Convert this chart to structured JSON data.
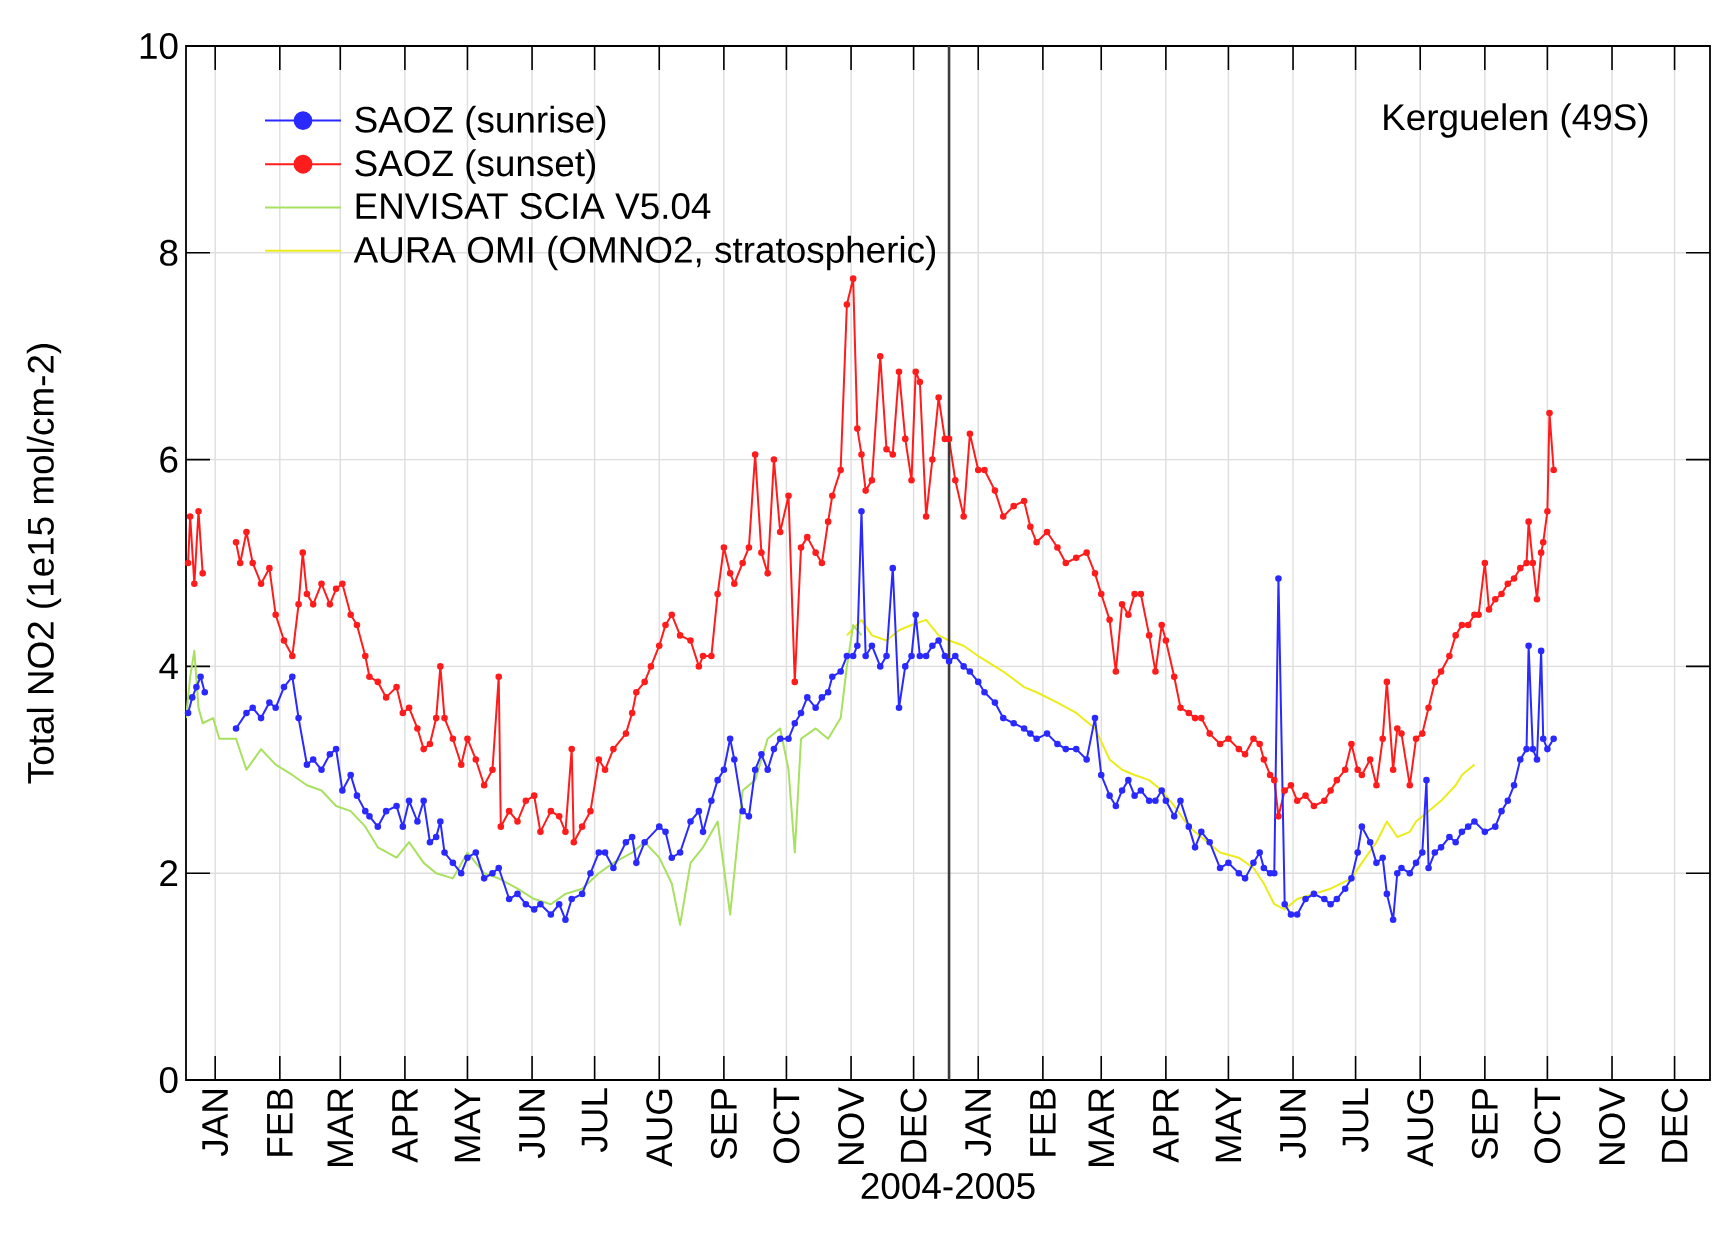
{
  "chart_data": {
    "type": "line",
    "xlabel": "2004-2005",
    "ylabel": "Total NO2 (1e15 mol/cm-2)",
    "annotations": [
      "Kerguelen (49S)"
    ],
    "xlim": [
      "2004-01-01",
      "2006-01-01"
    ],
    "ylim": [
      0,
      10
    ],
    "xticks": [
      {
        "value": "2004-01-15",
        "label": "JAN"
      },
      {
        "value": "2004-02-15",
        "label": "FEB"
      },
      {
        "value": "2004-03-15",
        "label": "MAR"
      },
      {
        "value": "2004-04-15",
        "label": "APR"
      },
      {
        "value": "2004-05-15",
        "label": "MAY"
      },
      {
        "value": "2004-06-15",
        "label": "JUN"
      },
      {
        "value": "2004-07-15",
        "label": "JUL"
      },
      {
        "value": "2004-08-15",
        "label": "AUG"
      },
      {
        "value": "2004-09-15",
        "label": "SEP"
      },
      {
        "value": "2004-10-15",
        "label": "OCT"
      },
      {
        "value": "2004-11-15",
        "label": "NOV"
      },
      {
        "value": "2004-12-15",
        "label": "DEC"
      },
      {
        "value": "2005-01-15",
        "label": "JAN"
      },
      {
        "value": "2005-02-15",
        "label": "FEB"
      },
      {
        "value": "2005-03-15",
        "label": "MAR"
      },
      {
        "value": "2005-04-15",
        "label": "APR"
      },
      {
        "value": "2005-05-15",
        "label": "MAY"
      },
      {
        "value": "2005-06-15",
        "label": "JUN"
      },
      {
        "value": "2005-07-15",
        "label": "JUL"
      },
      {
        "value": "2005-08-15",
        "label": "AUG"
      },
      {
        "value": "2005-09-15",
        "label": "SEP"
      },
      {
        "value": "2005-10-15",
        "label": "OCT"
      },
      {
        "value": "2005-11-15",
        "label": "NOV"
      },
      {
        "value": "2005-12-15",
        "label": "DEC"
      }
    ],
    "yticks": [
      0,
      2,
      4,
      6,
      8,
      10
    ],
    "grid": true,
    "legend": "top left",
    "ref_lines": [
      {
        "axis": "x",
        "value": "2005-01-01",
        "color": "#3c3c3c"
      }
    ],
    "series": [
      {
        "name": "SAOZ (sunrise)",
        "color": "#2a2aff",
        "marker": "circle",
        "x": [
          "2004-01-02",
          "2004-01-04",
          "2004-01-06",
          "2004-01-08",
          "2004-01-10",
          "2004-01-16",
          "2004-01-25",
          "2004-01-30",
          "2004-02-02",
          "2004-02-06",
          "2004-02-10",
          "2004-02-13",
          "2004-02-17",
          "2004-02-21",
          "2004-02-24",
          "2004-02-28",
          "2004-03-02",
          "2004-03-06",
          "2004-03-10",
          "2004-03-13",
          "2004-03-16",
          "2004-03-20",
          "2004-03-23",
          "2004-03-27",
          "2004-03-29",
          "2004-04-02",
          "2004-04-06",
          "2004-04-11",
          "2004-04-14",
          "2004-04-17",
          "2004-04-21",
          "2004-04-24",
          "2004-04-27",
          "2004-04-30",
          "2004-05-02",
          "2004-05-04",
          "2004-05-08",
          "2004-05-12",
          "2004-05-15",
          "2004-05-19",
          "2004-05-23",
          "2004-05-27",
          "2004-05-30",
          "2004-06-04",
          "2004-06-08",
          "2004-06-12",
          "2004-06-16",
          "2004-06-19",
          "2004-06-24",
          "2004-06-28",
          "2004-07-01",
          "2004-07-04",
          "2004-07-09",
          "2004-07-13",
          "2004-07-17",
          "2004-07-20",
          "2004-07-24",
          "2004-07-30",
          "2004-08-02",
          "2004-08-04",
          "2004-08-08",
          "2004-08-15",
          "2004-08-18",
          "2004-08-21",
          "2004-08-25",
          "2004-08-30",
          "2004-09-03",
          "2004-09-05",
          "2004-09-09",
          "2004-09-12",
          "2004-09-15",
          "2004-09-18",
          "2004-09-20",
          "2004-09-24",
          "2004-09-27",
          "2004-09-30",
          "2004-10-03",
          "2004-10-06",
          "2004-10-09",
          "2004-10-12",
          "2004-10-16",
          "2004-10-19",
          "2004-10-22",
          "2004-10-25",
          "2004-10-29",
          "2004-11-01",
          "2004-11-04",
          "2004-11-06",
          "2004-11-10",
          "2004-11-13",
          "2004-11-16",
          "2004-11-18",
          "2004-11-20",
          "2004-11-22",
          "2004-11-25",
          "2004-11-29",
          "2004-12-02",
          "2004-12-05",
          "2004-12-08",
          "2004-12-11",
          "2004-12-14",
          "2004-12-16",
          "2004-12-18",
          "2004-12-21",
          "2004-12-24",
          "2004-12-27",
          "2004-12-30",
          "2005-01-01",
          "2005-01-04",
          "2005-01-08",
          "2005-01-11",
          "2005-01-15",
          "2005-01-18",
          "2005-01-23",
          "2005-01-27",
          "2005-02-01",
          "2005-02-06",
          "2005-02-09",
          "2005-02-12",
          "2005-02-17",
          "2005-02-22",
          "2005-02-26",
          "2005-03-03",
          "2005-03-08",
          "2005-03-12",
          "2005-03-15",
          "2005-03-19",
          "2005-03-22",
          "2005-03-25",
          "2005-03-28",
          "2005-03-31",
          "2005-04-03",
          "2005-04-07",
          "2005-04-10",
          "2005-04-13",
          "2005-04-15",
          "2005-04-19",
          "2005-04-22",
          "2005-04-26",
          "2005-04-29",
          "2005-05-02",
          "2005-05-06",
          "2005-05-11",
          "2005-05-15",
          "2005-05-20",
          "2005-05-23",
          "2005-05-27",
          "2005-05-30",
          "2005-06-01",
          "2005-06-04",
          "2005-06-06",
          "2005-06-08",
          "2005-06-11",
          "2005-06-14",
          "2005-06-17",
          "2005-06-21",
          "2005-06-25",
          "2005-06-30",
          "2005-07-03",
          "2005-07-06",
          "2005-07-10",
          "2005-07-13",
          "2005-07-16",
          "2005-07-18",
          "2005-07-22",
          "2005-07-25",
          "2005-07-28",
          "2005-07-30",
          "2005-08-02",
          "2005-08-04",
          "2005-08-06",
          "2005-08-10",
          "2005-08-13",
          "2005-08-16",
          "2005-08-18",
          "2005-08-19",
          "2005-08-22",
          "2005-08-25",
          "2005-08-29",
          "2005-09-01",
          "2005-09-04",
          "2005-09-07",
          "2005-09-10",
          "2005-09-15",
          "2005-09-20",
          "2005-09-23",
          "2005-09-26",
          "2005-09-29",
          "2005-10-02",
          "2005-10-05",
          "2005-10-06",
          "2005-10-08",
          "2005-10-10",
          "2005-10-12",
          "2005-10-13",
          "2005-10-15",
          "2005-10-18"
        ],
        "values": [
          3.55,
          3.7,
          3.8,
          3.9,
          3.75,
          null,
          3.4,
          3.55,
          3.6,
          3.5,
          3.65,
          3.6,
          3.8,
          3.9,
          3.5,
          3.05,
          3.1,
          3.0,
          3.15,
          3.2,
          2.8,
          2.95,
          2.75,
          2.6,
          2.55,
          2.45,
          2.6,
          2.65,
          2.45,
          2.7,
          2.5,
          2.7,
          2.3,
          2.35,
          2.5,
          2.2,
          2.1,
          2.0,
          2.15,
          2.2,
          1.95,
          2.0,
          2.05,
          1.75,
          1.8,
          1.7,
          1.65,
          1.7,
          1.6,
          1.7,
          1.55,
          1.75,
          1.8,
          2.0,
          2.2,
          2.2,
          2.05,
          2.3,
          2.35,
          2.1,
          2.3,
          2.45,
          2.4,
          2.15,
          2.2,
          2.5,
          2.6,
          2.4,
          2.7,
          2.9,
          3.0,
          3.3,
          3.1,
          2.6,
          2.55,
          3.0,
          3.15,
          3.0,
          3.2,
          3.3,
          3.3,
          3.45,
          3.55,
          3.7,
          3.6,
          3.7,
          3.75,
          3.9,
          3.95,
          4.1,
          4.1,
          4.2,
          5.5,
          4.1,
          4.2,
          4.0,
          4.1,
          4.95,
          3.6,
          4.0,
          4.1,
          4.5,
          4.1,
          4.1,
          4.2,
          4.25,
          4.1,
          4.05,
          4.1,
          4.0,
          3.95,
          3.85,
          3.75,
          3.65,
          3.5,
          3.45,
          3.4,
          3.35,
          3.3,
          3.35,
          3.25,
          3.2,
          3.2,
          3.1,
          3.5,
          2.95,
          2.75,
          2.65,
          2.8,
          2.9,
          2.75,
          2.8,
          2.7,
          2.7,
          2.8,
          2.7,
          2.55,
          2.7,
          2.45,
          2.25,
          2.4,
          2.3,
          2.05,
          2.1,
          2.0,
          1.95,
          2.1,
          2.2,
          2.05,
          2.0,
          2.0,
          4.85,
          1.7,
          1.6,
          1.6,
          1.75,
          1.8,
          1.75,
          1.7,
          1.75,
          1.85,
          1.95,
          2.2,
          2.45,
          2.3,
          2.1,
          2.15,
          1.8,
          1.55,
          2.0,
          2.05,
          2.0,
          2.1,
          2.2,
          2.9,
          2.05,
          2.2,
          2.25,
          2.35,
          2.3,
          2.4,
          2.45,
          2.5,
          2.4,
          2.45,
          2.6,
          2.7,
          2.85,
          3.1,
          3.2,
          4.2,
          3.2,
          3.1,
          4.15,
          3.3,
          3.2,
          3.3
        ]
      },
      {
        "name": "SAOZ (sunset)",
        "color": "#ff1c1c",
        "marker": "circle",
        "x": [
          "2004-01-02",
          "2004-01-03",
          "2004-01-05",
          "2004-01-07",
          "2004-01-09",
          "2004-01-16",
          "2004-01-25",
          "2004-01-27",
          "2004-01-30",
          "2004-02-02",
          "2004-02-06",
          "2004-02-10",
          "2004-02-13",
          "2004-02-17",
          "2004-02-21",
          "2004-02-24",
          "2004-02-26",
          "2004-02-28",
          "2004-03-02",
          "2004-03-06",
          "2004-03-10",
          "2004-03-13",
          "2004-03-16",
          "2004-03-20",
          "2004-03-23",
          "2004-03-27",
          "2004-03-29",
          "2004-04-02",
          "2004-04-06",
          "2004-04-11",
          "2004-04-14",
          "2004-04-17",
          "2004-04-21",
          "2004-04-24",
          "2004-04-27",
          "2004-04-30",
          "2004-05-02",
          "2004-05-04",
          "2004-05-08",
          "2004-05-12",
          "2004-05-15",
          "2004-05-19",
          "2004-05-23",
          "2004-05-27",
          "2004-05-30",
          "2004-05-31",
          "2004-06-04",
          "2004-06-08",
          "2004-06-12",
          "2004-06-16",
          "2004-06-19",
          "2004-06-24",
          "2004-06-28",
          "2004-07-01",
          "2004-07-04",
          "2004-07-05",
          "2004-07-09",
          "2004-07-13",
          "2004-07-17",
          "2004-07-20",
          "2004-07-24",
          "2004-07-30",
          "2004-08-02",
          "2004-08-04",
          "2004-08-08",
          "2004-08-11",
          "2004-08-15",
          "2004-08-18",
          "2004-08-21",
          "2004-08-25",
          "2004-08-30",
          "2004-09-03",
          "2004-09-05",
          "2004-09-09",
          "2004-09-12",
          "2004-09-15",
          "2004-09-18",
          "2004-09-20",
          "2004-09-24",
          "2004-09-27",
          "2004-09-30",
          "2004-10-03",
          "2004-10-06",
          "2004-10-09",
          "2004-10-12",
          "2004-10-16",
          "2004-10-19",
          "2004-10-22",
          "2004-10-25",
          "2004-10-29",
          "2004-11-01",
          "2004-11-04",
          "2004-11-06",
          "2004-11-10",
          "2004-11-13",
          "2004-11-16",
          "2004-11-18",
          "2004-11-20",
          "2004-11-22",
          "2004-11-25",
          "2004-11-29",
          "2004-12-02",
          "2004-12-05",
          "2004-12-08",
          "2004-12-11",
          "2004-12-14",
          "2004-12-16",
          "2004-12-18",
          "2004-12-21",
          "2004-12-24",
          "2004-12-27",
          "2004-12-30",
          "2005-01-01",
          "2005-01-04",
          "2005-01-08",
          "2005-01-11",
          "2005-01-15",
          "2005-01-18",
          "2005-01-23",
          "2005-01-27",
          "2005-02-01",
          "2005-02-06",
          "2005-02-09",
          "2005-02-12",
          "2005-02-17",
          "2005-02-22",
          "2005-02-26",
          "2005-03-03",
          "2005-03-08",
          "2005-03-12",
          "2005-03-15",
          "2005-03-19",
          "2005-03-22",
          "2005-03-25",
          "2005-03-28",
          "2005-03-31",
          "2005-04-03",
          "2005-04-07",
          "2005-04-10",
          "2005-04-13",
          "2005-04-15",
          "2005-04-19",
          "2005-04-22",
          "2005-04-26",
          "2005-04-29",
          "2005-05-02",
          "2005-05-06",
          "2005-05-11",
          "2005-05-15",
          "2005-05-20",
          "2005-05-23",
          "2005-05-27",
          "2005-05-30",
          "2005-06-01",
          "2005-06-04",
          "2005-06-06",
          "2005-06-08",
          "2005-06-11",
          "2005-06-14",
          "2005-06-17",
          "2005-06-21",
          "2005-06-25",
          "2005-06-30",
          "2005-07-03",
          "2005-07-06",
          "2005-07-10",
          "2005-07-13",
          "2005-07-16",
          "2005-07-18",
          "2005-07-22",
          "2005-07-25",
          "2005-07-28",
          "2005-07-30",
          "2005-08-02",
          "2005-08-04",
          "2005-08-06",
          "2005-08-10",
          "2005-08-13",
          "2005-08-16",
          "2005-08-19",
          "2005-08-22",
          "2005-08-25",
          "2005-08-29",
          "2005-09-01",
          "2005-09-04",
          "2005-09-07",
          "2005-09-10",
          "2005-09-12",
          "2005-09-15",
          "2005-09-17",
          "2005-09-20",
          "2005-09-23",
          "2005-09-26",
          "2005-09-29",
          "2005-10-02",
          "2005-10-05",
          "2005-10-06",
          "2005-10-08",
          "2005-10-10",
          "2005-10-12",
          "2005-10-13",
          "2005-10-15",
          "2005-10-16",
          "2005-10-18"
        ],
        "values": [
          5.0,
          5.45,
          4.8,
          5.5,
          4.9,
          null,
          5.2,
          5.0,
          5.3,
          5.0,
          4.8,
          4.95,
          4.5,
          4.25,
          4.1,
          4.6,
          5.1,
          4.7,
          4.6,
          4.8,
          4.6,
          4.75,
          4.8,
          4.5,
          4.4,
          4.1,
          3.9,
          3.85,
          3.7,
          3.8,
          3.55,
          3.6,
          3.4,
          3.2,
          3.25,
          3.5,
          4.0,
          3.5,
          3.3,
          3.05,
          3.3,
          3.1,
          2.85,
          3.0,
          3.9,
          2.45,
          2.6,
          2.5,
          2.7,
          2.75,
          2.4,
          2.6,
          2.55,
          2.4,
          3.2,
          2.3,
          2.45,
          2.6,
          3.1,
          3.0,
          3.2,
          3.35,
          3.55,
          3.75,
          3.85,
          4.0,
          4.2,
          4.4,
          4.5,
          4.3,
          4.25,
          4.0,
          4.1,
          4.1,
          4.7,
          5.15,
          4.9,
          4.8,
          5.0,
          5.15,
          6.05,
          5.1,
          4.9,
          6.0,
          5.3,
          5.65,
          3.85,
          5.15,
          5.25,
          5.1,
          5.0,
          5.4,
          5.65,
          5.9,
          7.5,
          7.75,
          6.3,
          6.05,
          5.7,
          5.8,
          7.0,
          6.1,
          6.05,
          6.85,
          6.2,
          5.8,
          6.85,
          6.75,
          5.45,
          6.0,
          6.6,
          6.2,
          6.2,
          5.8,
          5.45,
          6.25,
          5.9,
          5.9,
          5.7,
          5.45,
          5.55,
          5.6,
          5.35,
          5.2,
          5.3,
          5.15,
          5.0,
          5.05,
          5.1,
          4.9,
          4.7,
          4.45,
          3.95,
          4.6,
          4.5,
          4.7,
          4.7,
          4.3,
          3.95,
          4.4,
          4.25,
          3.9,
          3.6,
          3.55,
          3.5,
          3.5,
          3.35,
          3.25,
          3.3,
          3.2,
          3.15,
          3.3,
          3.25,
          3.1,
          2.95,
          2.9,
          2.55,
          2.8,
          2.85,
          2.7,
          2.75,
          2.65,
          2.7,
          2.8,
          2.9,
          3.0,
          3.25,
          3.0,
          2.95,
          3.1,
          2.85,
          3.3,
          3.85,
          3.0,
          3.4,
          3.35,
          2.85,
          3.3,
          3.35,
          3.6,
          3.85,
          3.95,
          4.1,
          4.3,
          4.4,
          4.4,
          4.5,
          4.5,
          5.0,
          4.55,
          4.65,
          4.7,
          4.8,
          4.85,
          4.95,
          5.0,
          5.4,
          5.0,
          4.65,
          5.1,
          5.2,
          5.5,
          6.45,
          5.9
        ]
      },
      {
        "name": "ENVISAT SCIA V5.04",
        "color": "#a8e060",
        "marker": "none",
        "x": [
          "2004-01-01",
          "2004-01-03",
          "2004-01-05",
          "2004-01-07",
          "2004-01-09",
          "2004-01-14",
          "2004-01-17",
          "2004-01-25",
          "2004-01-30",
          "2004-02-06",
          "2004-02-13",
          "2004-02-21",
          "2004-02-28",
          "2004-03-06",
          "2004-03-13",
          "2004-03-20",
          "2004-03-27",
          "2004-04-02",
          "2004-04-11",
          "2004-04-17",
          "2004-04-24",
          "2004-04-30",
          "2004-05-08",
          "2004-05-15",
          "2004-05-23",
          "2004-05-30",
          "2004-06-08",
          "2004-06-16",
          "2004-06-24",
          "2004-07-01",
          "2004-07-09",
          "2004-07-17",
          "2004-07-24",
          "2004-08-02",
          "2004-08-08",
          "2004-08-15",
          "2004-08-21",
          "2004-08-25",
          "2004-08-30",
          "2004-09-05",
          "2004-09-12",
          "2004-09-18",
          "2004-09-24",
          "2004-09-30",
          "2004-10-06",
          "2004-10-12",
          "2004-10-16",
          "2004-10-19",
          "2004-10-22",
          "2004-10-29",
          "2004-11-04",
          "2004-11-10",
          "2004-11-13",
          "2004-11-16",
          "2004-11-20"
        ],
        "values": [
          3.5,
          3.9,
          4.15,
          3.6,
          3.45,
          3.5,
          3.3,
          3.3,
          3.0,
          3.2,
          3.05,
          2.95,
          2.85,
          2.8,
          2.65,
          2.6,
          2.45,
          2.25,
          2.15,
          2.3,
          2.1,
          2.0,
          1.95,
          2.2,
          2.0,
          1.95,
          1.85,
          1.75,
          1.7,
          1.8,
          1.85,
          2.0,
          2.1,
          2.2,
          2.3,
          2.15,
          1.9,
          1.5,
          2.1,
          2.25,
          2.5,
          1.6,
          2.8,
          2.9,
          3.3,
          3.4,
          3.0,
          2.2,
          3.3,
          3.4,
          3.3,
          3.5,
          4.0,
          4.4,
          4.3
        ]
      },
      {
        "name": "AURA OMI (OMNO2, stratospheric)",
        "color": "#ecec1c",
        "marker": "none",
        "x": [
          "2004-11-13",
          "2004-11-20",
          "2004-11-25",
          "2004-12-02",
          "2004-12-08",
          "2004-12-14",
          "2004-12-21",
          "2004-12-27",
          "2005-01-01",
          "2005-01-08",
          "2005-01-15",
          "2005-01-23",
          "2005-01-27",
          "2005-02-06",
          "2005-02-12",
          "2005-02-22",
          "2005-03-03",
          "2005-03-12",
          "2005-03-19",
          "2005-03-25",
          "2005-03-31",
          "2005-04-07",
          "2005-04-13",
          "2005-04-19",
          "2005-04-26",
          "2005-05-02",
          "2005-05-11",
          "2005-05-20",
          "2005-05-27",
          "2005-06-01",
          "2005-06-06",
          "2005-06-11",
          "2005-06-17",
          "2005-06-25",
          "2005-07-03",
          "2005-07-13",
          "2005-07-18",
          "2005-07-25",
          "2005-07-30",
          "2005-08-04",
          "2005-08-10",
          "2005-08-13",
          "2005-08-19",
          "2005-08-25",
          "2005-09-01",
          "2005-09-04",
          "2005-09-07",
          "2005-09-10"
        ],
        "values": [
          4.3,
          4.45,
          4.3,
          4.25,
          4.35,
          4.4,
          4.45,
          4.3,
          4.25,
          4.2,
          4.1,
          4.0,
          3.95,
          3.8,
          3.75,
          3.65,
          3.55,
          3.4,
          3.1,
          3.0,
          2.95,
          2.9,
          2.8,
          2.65,
          2.45,
          2.35,
          2.2,
          2.15,
          2.05,
          1.9,
          1.7,
          1.65,
          1.75,
          1.8,
          1.85,
          1.95,
          2.1,
          2.3,
          2.5,
          2.35,
          2.4,
          2.5,
          2.6,
          2.7,
          2.85,
          2.95,
          3.0,
          3.05
        ]
      }
    ]
  }
}
